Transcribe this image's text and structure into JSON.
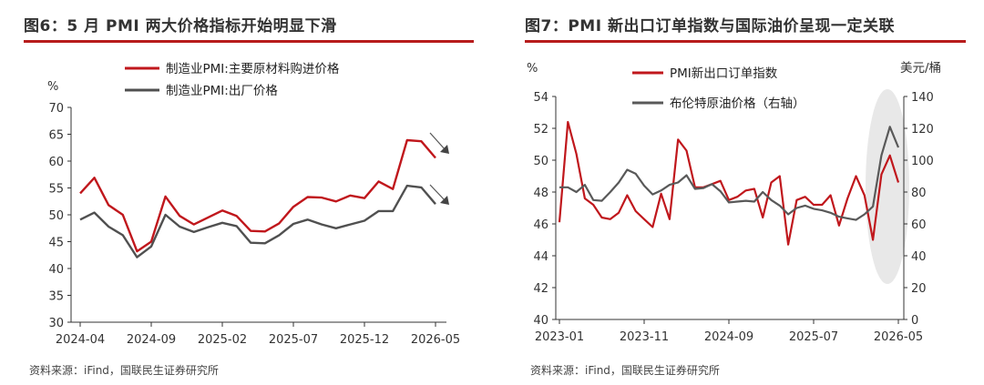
{
  "chart_data": [
    {
      "type": "line",
      "title": "图6：5 月 PMI 两大价格指标开始明显下滑",
      "ylabel": "%",
      "ylim": [
        30,
        70
      ],
      "yticks": [
        30,
        35,
        40,
        45,
        50,
        55,
        60,
        65,
        70
      ],
      "xtick_labels": [
        "2024-04",
        "2024-09",
        "2025-02",
        "2025-07",
        "2025-12",
        "2026-05"
      ],
      "legend_position": "top",
      "source": "资料来源：iFind，国联民生证券研究所",
      "series": [
        {
          "name": "制造业PMI:主要原材料购进价格",
          "color": "#c0171c",
          "values": [
            54.0,
            56.9,
            51.8,
            50.0,
            43.2,
            45.0,
            53.4,
            49.8,
            48.2,
            49.5,
            50.8,
            49.8,
            47.0,
            46.9,
            48.4,
            51.5,
            53.3,
            53.2,
            52.5,
            53.6,
            53.1,
            56.2,
            54.8,
            63.9,
            63.7,
            60.6
          ]
        },
        {
          "name": "制造业PMI:出厂价格",
          "color": "#505050",
          "values": [
            49.1,
            50.4,
            47.8,
            46.2,
            42.1,
            44.1,
            50.0,
            47.8,
            46.8,
            47.7,
            48.5,
            47.9,
            44.8,
            44.7,
            46.2,
            48.3,
            49.1,
            48.2,
            47.5,
            48.2,
            48.9,
            50.7,
            50.7,
            55.4,
            55.1,
            52.0
          ]
        }
      ]
    },
    {
      "type": "line",
      "title": "图7：PMI 新出口订单指数与国际油价呈现一定关联",
      "ylabel": "%",
      "ylabel_right": "美元/桶",
      "ylim": [
        40,
        54
      ],
      "ylim_right": [
        0,
        140
      ],
      "yticks": [
        40,
        42,
        44,
        46,
        48,
        50,
        52,
        54
      ],
      "yticks_right": [
        0,
        20,
        40,
        60,
        80,
        100,
        120,
        140
      ],
      "xtick_labels": [
        "2023-01",
        "2023-11",
        "2024-09",
        "2025-07",
        "2026-05"
      ],
      "legend_position": "top",
      "source": "资料来源：iFind，国联民生证券研究所",
      "series": [
        {
          "name": "PMI新出口订单指数",
          "color": "#c0171c",
          "axis": "left",
          "values": [
            46.1,
            52.4,
            50.4,
            47.6,
            47.2,
            46.4,
            46.3,
            46.7,
            47.8,
            46.8,
            46.3,
            45.8,
            47.9,
            46.3,
            51.3,
            50.6,
            48.3,
            48.3,
            48.5,
            48.7,
            47.5,
            47.7,
            48.1,
            48.2,
            46.4,
            48.6,
            49.0,
            44.7,
            47.5,
            47.7,
            47.2,
            47.2,
            47.8,
            45.9,
            47.6,
            49.0,
            47.8,
            45.0,
            49.1,
            50.3,
            48.6
          ]
        },
        {
          "name": "布伦特原油价格（右轴）",
          "color": "#595959",
          "axis": "right",
          "values": [
            83.0,
            83.0,
            80.0,
            84.5,
            75.0,
            74.5,
            80.0,
            86.0,
            94.0,
            91.5,
            84.0,
            78.5,
            81.0,
            84.5,
            86.0,
            90.5,
            82.0,
            82.5,
            85.0,
            80.5,
            73.5,
            74.0,
            74.5,
            74.0,
            80.0,
            75.0,
            71.5,
            66.0,
            70.0,
            71.5,
            69.5,
            68.5,
            67.0,
            64.5,
            63.5,
            62.5,
            66.0,
            71.0,
            103.0,
            121.0,
            108.0
          ]
        }
      ]
    }
  ]
}
